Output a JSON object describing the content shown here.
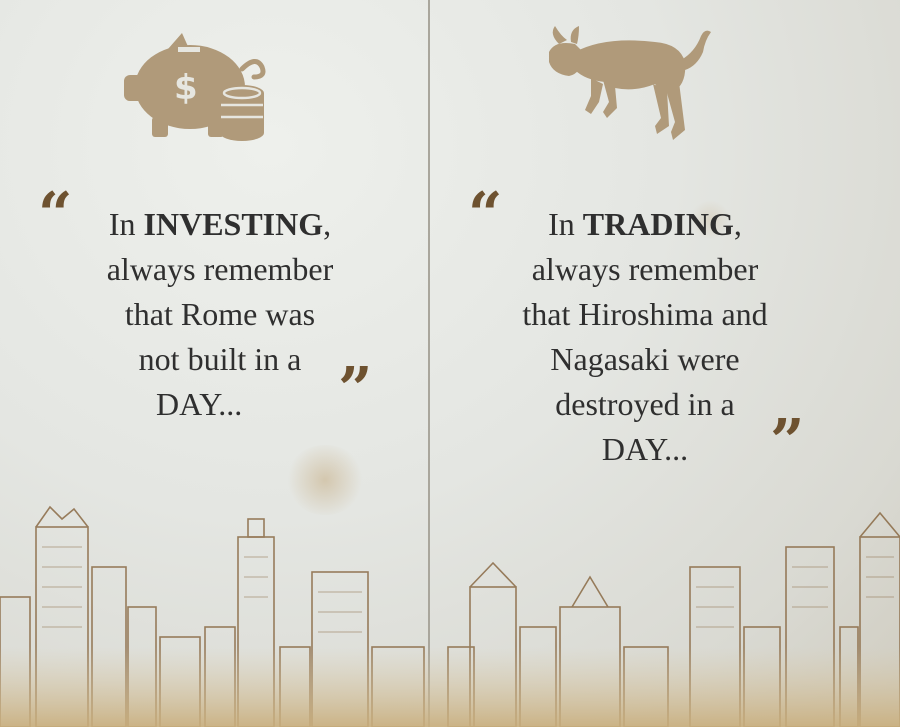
{
  "left": {
    "icon": "piggy-bank-dollar-coins-icon",
    "quote_prefix": "In ",
    "quote_keyword": "INVESTING",
    "quote_comma": ",",
    "quote_lines": [
      "always remember",
      "that Rome was",
      "not built in a",
      "DAY..."
    ]
  },
  "right": {
    "icon": "charging-bull-icon",
    "quote_prefix": "In ",
    "quote_keyword": "TRADING",
    "quote_comma": ",",
    "quote_lines": [
      "always remember",
      "that Hiroshima and",
      "Nagasaki were",
      "destroyed in a",
      "DAY..."
    ]
  },
  "colors": {
    "icon": "#b09a7a",
    "quote_marks": "#6e5230",
    "text": "#2f2f2f",
    "sketch": "#8a6a45"
  }
}
